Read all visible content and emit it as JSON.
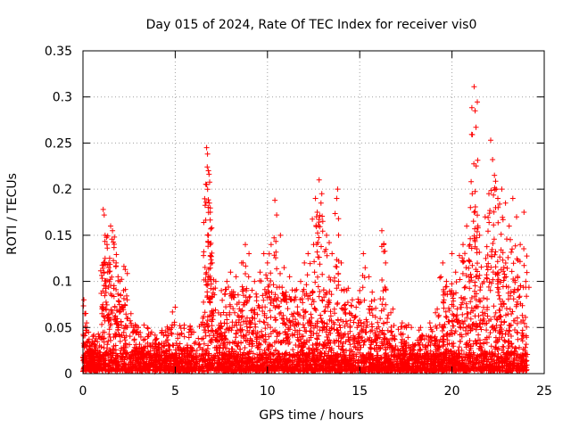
{
  "chart_data": {
    "type": "scatter",
    "title": "Day 015 of 2024, Rate Of TEC Index for receiver vis0",
    "xlabel": "GPS time / hours",
    "ylabel": "ROTI / TECUs",
    "xlim": [
      0,
      25
    ],
    "ylim": [
      0,
      0.35
    ],
    "xticks": [
      "0",
      "5",
      "10",
      "15",
      "20",
      "25"
    ],
    "yticks": [
      "0",
      "0.05",
      "0.1",
      "0.15",
      "0.2",
      "0.25",
      "0.3",
      "0.35"
    ],
    "grid": true,
    "marker": "+",
    "color": "#ff0000",
    "series": [
      {
        "name": "ROTI",
        "points": [
          [
            0.05,
            0.08
          ],
          [
            0.1,
            0.065
          ],
          [
            0.2,
            0.055
          ],
          [
            0.3,
            0.045
          ],
          [
            0.5,
            0.035
          ],
          [
            0.7,
            0.03
          ],
          [
            1.1,
            0.178
          ],
          [
            1.15,
            0.172
          ],
          [
            1.2,
            0.15
          ],
          [
            1.3,
            0.14
          ],
          [
            1.2,
            0.125
          ],
          [
            1.4,
            0.115
          ],
          [
            1.5,
            0.16
          ],
          [
            1.6,
            0.155
          ],
          [
            1.7,
            0.148
          ],
          [
            1.8,
            0.12
          ],
          [
            1.9,
            0.105
          ],
          [
            2.0,
            0.1
          ],
          [
            2.2,
            0.09
          ],
          [
            2.4,
            0.08
          ],
          [
            2.6,
            0.065
          ],
          [
            3.0,
            0.05
          ],
          [
            3.5,
            0.04
          ],
          [
            4.0,
            0.038
          ],
          [
            4.5,
            0.035
          ],
          [
            5.0,
            0.072
          ],
          [
            5.5,
            0.04
          ],
          [
            6.0,
            0.045
          ],
          [
            6.5,
            0.06
          ],
          [
            6.7,
            0.245
          ],
          [
            6.75,
            0.238
          ],
          [
            6.8,
            0.22
          ],
          [
            6.7,
            0.205
          ],
          [
            6.85,
            0.185
          ],
          [
            6.9,
            0.175
          ],
          [
            6.8,
            0.15
          ],
          [
            6.9,
            0.14
          ],
          [
            7.0,
            0.12
          ],
          [
            7.2,
            0.1
          ],
          [
            7.5,
            0.09
          ],
          [
            7.8,
            0.1
          ],
          [
            8.0,
            0.11
          ],
          [
            8.3,
            0.105
          ],
          [
            8.6,
            0.12
          ],
          [
            8.8,
            0.14
          ],
          [
            9.0,
            0.13
          ],
          [
            9.3,
            0.1
          ],
          [
            9.6,
            0.11
          ],
          [
            9.8,
            0.13
          ],
          [
            10.0,
            0.12
          ],
          [
            10.2,
            0.14
          ],
          [
            10.4,
            0.188
          ],
          [
            10.5,
            0.172
          ],
          [
            10.7,
            0.15
          ],
          [
            10.9,
            0.115
          ],
          [
            11.2,
            0.105
          ],
          [
            11.5,
            0.09
          ],
          [
            11.8,
            0.1
          ],
          [
            12.0,
            0.12
          ],
          [
            12.2,
            0.13
          ],
          [
            12.5,
            0.14
          ],
          [
            12.6,
            0.19
          ],
          [
            12.7,
            0.175
          ],
          [
            12.8,
            0.21
          ],
          [
            12.9,
            0.185
          ],
          [
            13.0,
            0.165
          ],
          [
            13.2,
            0.15
          ],
          [
            13.5,
            0.13
          ],
          [
            13.8,
            0.2
          ],
          [
            13.85,
            0.168
          ],
          [
            14.0,
            0.12
          ],
          [
            14.3,
            0.09
          ],
          [
            14.6,
            0.08
          ],
          [
            15.0,
            0.09
          ],
          [
            15.2,
            0.13
          ],
          [
            15.5,
            0.105
          ],
          [
            15.8,
            0.08
          ],
          [
            16.2,
            0.155
          ],
          [
            16.3,
            0.14
          ],
          [
            16.4,
            0.12
          ],
          [
            16.8,
            0.07
          ],
          [
            17.3,
            0.055
          ],
          [
            17.8,
            0.05
          ],
          [
            18.3,
            0.05
          ],
          [
            18.8,
            0.055
          ],
          [
            19.2,
            0.07
          ],
          [
            19.5,
            0.12
          ],
          [
            19.7,
            0.1
          ],
          [
            20.0,
            0.13
          ],
          [
            20.2,
            0.11
          ],
          [
            20.4,
            0.128
          ],
          [
            20.6,
            0.14
          ],
          [
            20.8,
            0.16
          ],
          [
            21.0,
            0.18
          ],
          [
            21.1,
            0.195
          ],
          [
            21.2,
            0.311
          ],
          [
            21.25,
            0.285
          ],
          [
            21.3,
            0.267
          ],
          [
            21.2,
            0.175
          ],
          [
            21.4,
            0.16
          ],
          [
            21.5,
            0.15
          ],
          [
            21.8,
            0.17
          ],
          [
            22.0,
            0.195
          ],
          [
            22.1,
            0.253
          ],
          [
            22.2,
            0.232
          ],
          [
            22.3,
            0.215
          ],
          [
            22.4,
            0.2
          ],
          [
            22.5,
            0.18
          ],
          [
            22.7,
            0.2
          ],
          [
            22.9,
            0.185
          ],
          [
            23.1,
            0.16
          ],
          [
            23.3,
            0.19
          ],
          [
            23.5,
            0.17
          ],
          [
            23.7,
            0.14
          ],
          [
            23.9,
            0.175
          ],
          [
            24.0,
            0.1
          ]
        ],
        "approx_point_count": 14000
      }
    ]
  }
}
